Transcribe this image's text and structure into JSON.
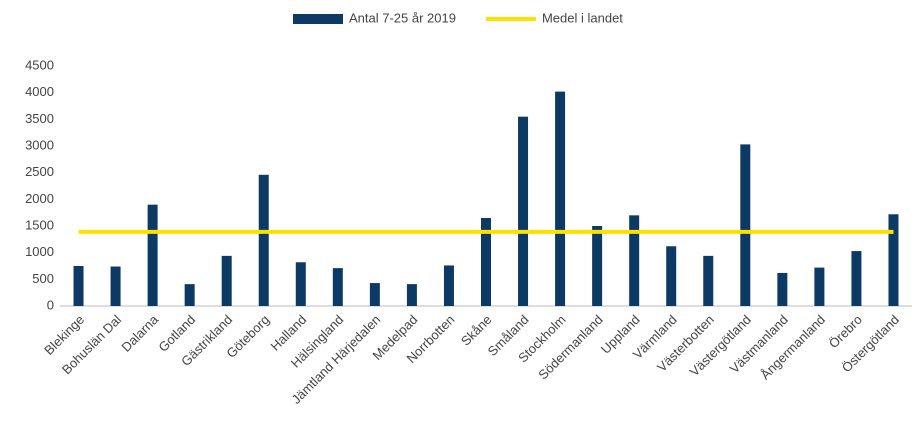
{
  "chart_data": {
    "type": "bar",
    "categories": [
      "Blekinge",
      "Bohuslän Dal",
      "Dalarna",
      "Gotland",
      "Gästrikland",
      "Göteborg",
      "Halland",
      "Hälsingland",
      "Jämtland Härjedalen",
      "Medelpad",
      "Norrbotten",
      "Skåne",
      "Småland",
      "Stockholm",
      "Södermanland",
      "Uppland",
      "Värmland",
      "Västerbotten",
      "Västergötland",
      "Västmanland",
      "Ångermanland",
      "Örebro",
      "Östergötland"
    ],
    "series": [
      {
        "name": "Antal 7-25 år 2019",
        "type": "bar",
        "color": "#0d3a65",
        "values": [
          750,
          740,
          1900,
          410,
          940,
          2460,
          820,
          710,
          430,
          410,
          760,
          1650,
          3550,
          4020,
          1500,
          1700,
          1120,
          940,
          3030,
          620,
          720,
          1030,
          1720
        ]
      },
      {
        "name": "Medel i landet",
        "type": "line",
        "color": "#ffe100",
        "values": [
          1390,
          1390,
          1390,
          1390,
          1390,
          1390,
          1390,
          1390,
          1390,
          1390,
          1390,
          1390,
          1390,
          1390,
          1390,
          1390,
          1390,
          1390,
          1390,
          1390,
          1390,
          1390,
          1390
        ]
      }
    ],
    "ylim": [
      0,
      4500
    ],
    "yticks": [
      0,
      500,
      1000,
      1500,
      2000,
      2500,
      3000,
      3500,
      4000,
      4500
    ],
    "grid": false,
    "legend": "top"
  }
}
